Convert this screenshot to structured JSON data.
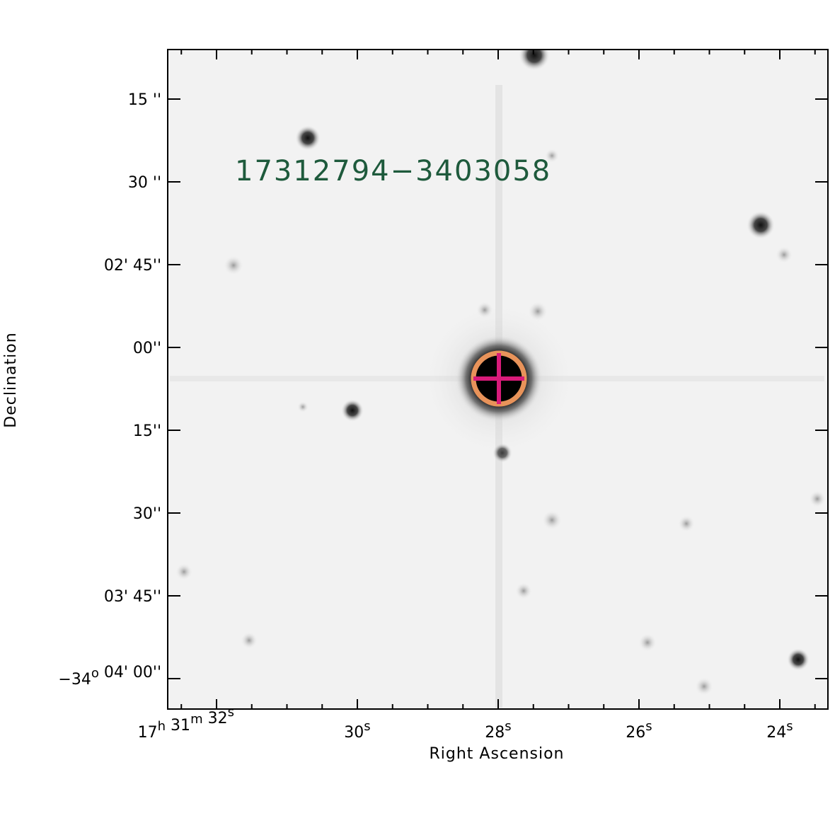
{
  "image": {
    "source_label": "17312794−3403058",
    "label_color": "#1e5a3c",
    "marker_circle_color": "#e8935a",
    "marker_cross_color": "#d81b7a",
    "background_color": "#f2f2f2"
  },
  "axes": {
    "xlabel": "Right Ascension",
    "ylabel": "Declination",
    "x_ticks": [
      {
        "value_s": 32,
        "parts": [
          [
            "17",
            "h"
          ],
          [
            "31",
            "m"
          ],
          [
            "32",
            "s"
          ]
        ]
      },
      {
        "value_s": 30,
        "parts": [
          [
            "30",
            "s"
          ]
        ]
      },
      {
        "value_s": 28,
        "parts": [
          [
            "28",
            "s"
          ]
        ]
      },
      {
        "value_s": 26,
        "parts": [
          [
            "26",
            "s"
          ]
        ]
      },
      {
        "value_s": 24,
        "parts": [
          [
            "24",
            "s"
          ]
        ]
      }
    ],
    "x_minor_s": [
      33,
      32.5,
      31.5,
      31,
      30.5,
      29.5,
      29,
      28.5,
      27.5,
      27,
      26.5,
      25.5,
      25,
      24.5,
      23.5
    ],
    "y_ticks": [
      {
        "value_as": 15,
        "parts": [
          [
            "15",
            ""
          ],
          [
            "''",
            ""
          ]
        ]
      },
      {
        "value_as": 30,
        "parts": [
          [
            "30",
            ""
          ],
          [
            "''",
            ""
          ]
        ]
      },
      {
        "value_as": 45,
        "parts": [
          [
            "02' 45''",
            ""
          ]
        ]
      },
      {
        "value_as": 60,
        "parts": [
          [
            "00''",
            ""
          ]
        ]
      },
      {
        "value_as": 75,
        "parts": [
          [
            "15''",
            ""
          ]
        ]
      },
      {
        "value_as": 90,
        "parts": [
          [
            "30''",
            ""
          ]
        ]
      },
      {
        "value_as": 105,
        "parts": [
          [
            "03' 45''",
            ""
          ]
        ]
      },
      {
        "value_as": 120,
        "parts": [
          [
            "−34",
            "o"
          ],
          [
            " 04' 00''",
            ""
          ]
        ]
      }
    ]
  },
  "target": {
    "ra_s": 27.9,
    "dec_offset_as": 66
  }
}
